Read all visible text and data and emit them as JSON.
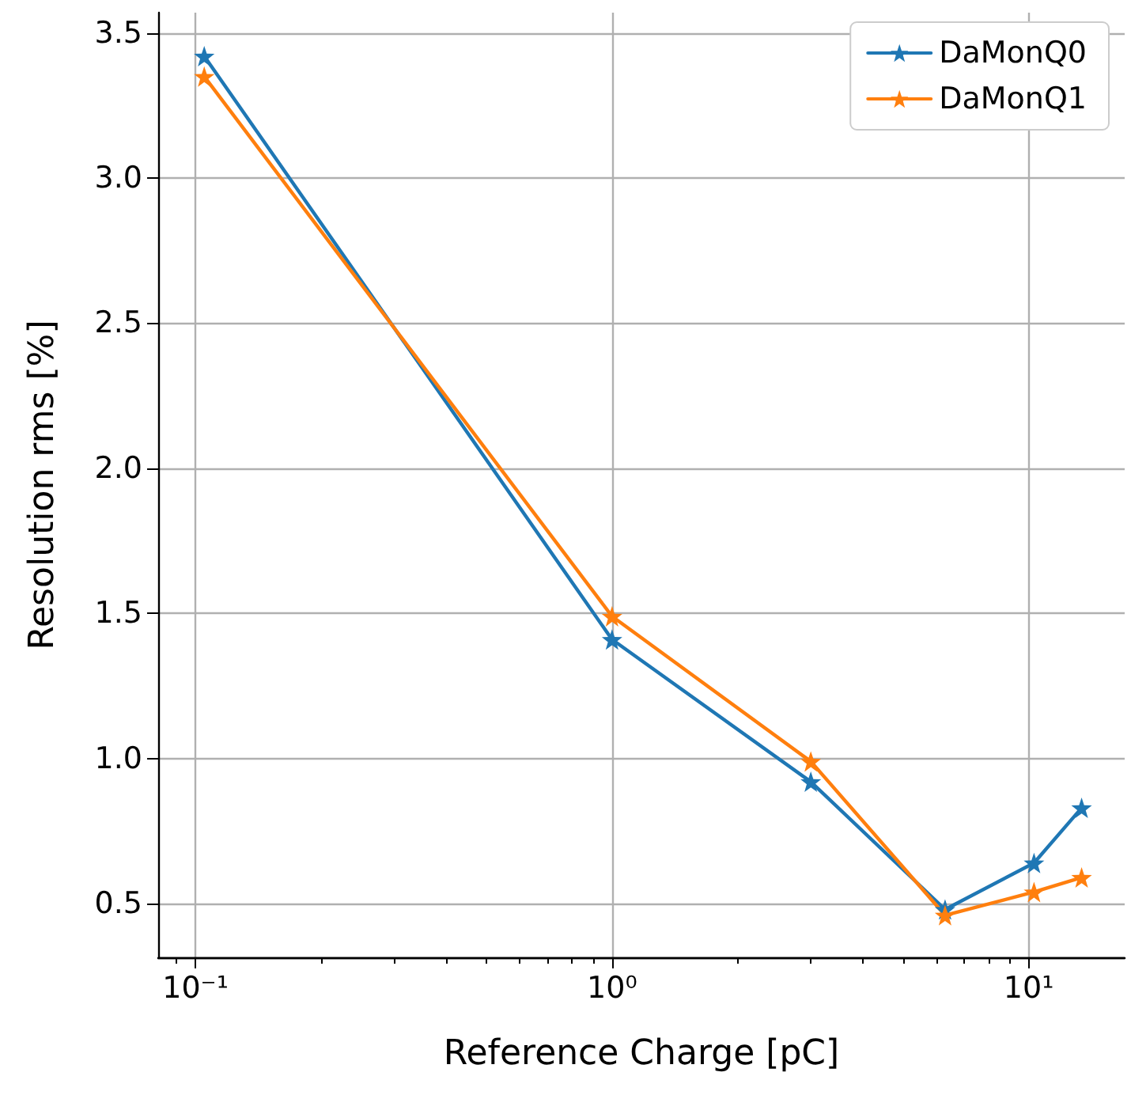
{
  "chart_data": {
    "type": "line",
    "xlabel": "Reference Charge [pC]",
    "ylabel": "Resolution rms [%]",
    "x": [
      0.105,
      1.0,
      3.0,
      6.3,
      10.3,
      13.4
    ],
    "series": [
      {
        "name": "DaMonQ0",
        "color": "#1f77b4",
        "values": [
          3.42,
          1.41,
          0.92,
          0.48,
          0.64,
          0.83
        ]
      },
      {
        "name": "DaMonQ1",
        "color": "#ff7f0e",
        "values": [
          3.35,
          1.49,
          0.99,
          0.46,
          0.54,
          0.59
        ]
      }
    ],
    "log": "x",
    "xlim": [
      0.0814,
      17.0
    ],
    "ylim": [
      0.315,
      3.57
    ],
    "xticks": [
      {
        "value": 0.1,
        "label": "10⁻¹"
      },
      {
        "value": 1,
        "label": "10⁰"
      },
      {
        "value": 10,
        "label": "10¹"
      },
      {
        "value": 0.09,
        "label": null
      },
      {
        "value": 0.2,
        "label": null
      },
      {
        "value": 0.3,
        "label": null
      },
      {
        "value": 0.4,
        "label": null
      },
      {
        "value": 0.5,
        "label": null
      },
      {
        "value": 0.6,
        "label": null
      },
      {
        "value": 0.7,
        "label": null
      },
      {
        "value": 0.8,
        "label": null
      },
      {
        "value": 0.9,
        "label": null
      },
      {
        "value": 2,
        "label": null
      },
      {
        "value": 3,
        "label": null
      },
      {
        "value": 4,
        "label": null
      },
      {
        "value": 5,
        "label": null
      },
      {
        "value": 6,
        "label": null
      },
      {
        "value": 7,
        "label": null
      },
      {
        "value": 8,
        "label": null
      },
      {
        "value": 9,
        "label": null
      }
    ],
    "yticks": [
      {
        "value": 0.5,
        "label": "0.5"
      },
      {
        "value": 1,
        "label": "1.0"
      },
      {
        "value": 1.5,
        "label": "1.5"
      },
      {
        "value": 2,
        "label": "2.0"
      },
      {
        "value": 2.5,
        "label": "2.5"
      },
      {
        "value": 3,
        "label": "3.0"
      },
      {
        "value": 3.5,
        "label": "3.5"
      }
    ],
    "grid": true,
    "legend": "top right",
    "marker": "star",
    "line_style": "solid"
  }
}
